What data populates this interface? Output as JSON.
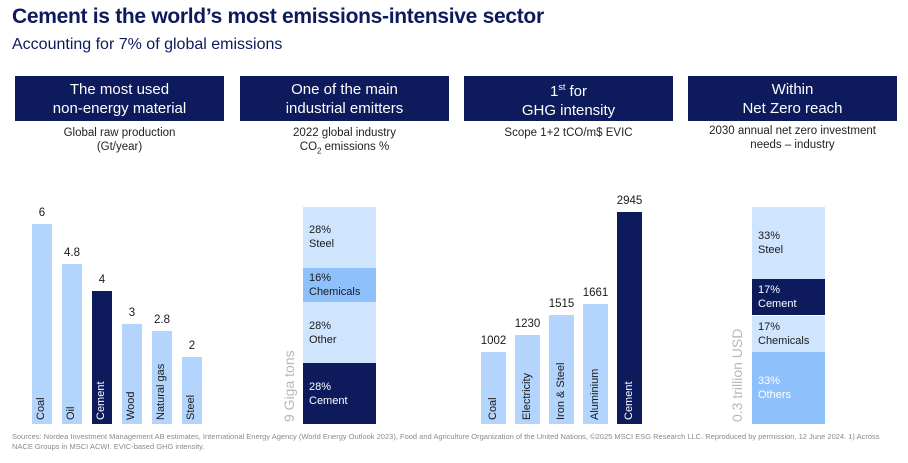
{
  "title": "Cement is the world’s most emissions-intensive sector",
  "subtitle": "Accounting for 7% of global emissions",
  "colors": {
    "navy": "#0d1a5c",
    "light_blue": "#b3d4fc",
    "pale_blue": "#cfe4fd",
    "mid_blue": "#8ec1fb"
  },
  "footnote": "Sources: Nordea Investment Management AB estimates, International Energy Agency (World Energy Outlook 2023), Food and Agriculture Organization of the United Nations, ©2025 MSCI ESG Research LLC. Reproduced by permission. 12 June 2024. 1) Across NACE Groups in MSCI ACWI. EVIC-based GHG intensity.",
  "chart_data": [
    {
      "type": "bar",
      "header": [
        "The most used",
        "non-energy material"
      ],
      "subtitle": [
        "Global raw production",
        "(Gt/year)"
      ],
      "categories": [
        "Coal",
        "Oil",
        "Cement",
        "Wood",
        "Natural gas",
        "Steel"
      ],
      "values": [
        6,
        4.8,
        4,
        3,
        2.8,
        2
      ],
      "value_labels": [
        "6",
        "4.8",
        "4",
        "3",
        "2.8",
        "2"
      ],
      "highlight": "Cement",
      "ylim": [
        0,
        6
      ]
    },
    {
      "type": "bar",
      "stacked": true,
      "header": [
        "One of the main",
        "industrial emitters"
      ],
      "subtitle": [
        "2022 global industry",
        "CO",
        "2",
        " emissions %"
      ],
      "side_label": "9 Giga tons",
      "segments": [
        {
          "name": "Steel",
          "value": 28,
          "label": "28%",
          "color": "#cfe4fd"
        },
        {
          "name": "Chemicals",
          "value": 16,
          "label": "16%",
          "color": "#8ec1fb"
        },
        {
          "name": "Other",
          "value": 28,
          "label": "28%",
          "color": "#cfe4fd"
        },
        {
          "name": "Cement",
          "value": 28,
          "label": "28%",
          "color": "#0d1a5c"
        }
      ]
    },
    {
      "type": "bar",
      "header": [
        "1",
        "st",
        " for",
        "GHG intensity"
      ],
      "subtitle": [
        "Scope 1+2 tCO/m$ EVIC"
      ],
      "categories": [
        "Coal",
        "Electricity",
        "Iron & Steel",
        "Aluminium",
        "Cement"
      ],
      "values": [
        1002,
        1230,
        1515,
        1661,
        2945
      ],
      "value_labels": [
        "1002",
        "1230",
        "1515",
        "1661",
        "2945"
      ],
      "highlight": "Cement",
      "ylim": [
        0,
        2945
      ]
    },
    {
      "type": "bar",
      "stacked": true,
      "header": [
        "Within",
        "Net Zero reach"
      ],
      "subtitle": [
        "2030 annual net zero investment",
        "needs – industry"
      ],
      "side_label": "0.3 trillion USD",
      "segments": [
        {
          "name": "Steel",
          "value": 33,
          "label": "33%",
          "color": "#cfe4fd"
        },
        {
          "name": "Cement",
          "value": 17,
          "label": "17%",
          "color": "#0d1a5c"
        },
        {
          "name": "Chemicals",
          "value": 17,
          "label": "17%",
          "color": "#cfe4fd"
        },
        {
          "name": "Others",
          "value": 33,
          "label": "33%",
          "color": "#8ec1fb"
        }
      ]
    }
  ]
}
